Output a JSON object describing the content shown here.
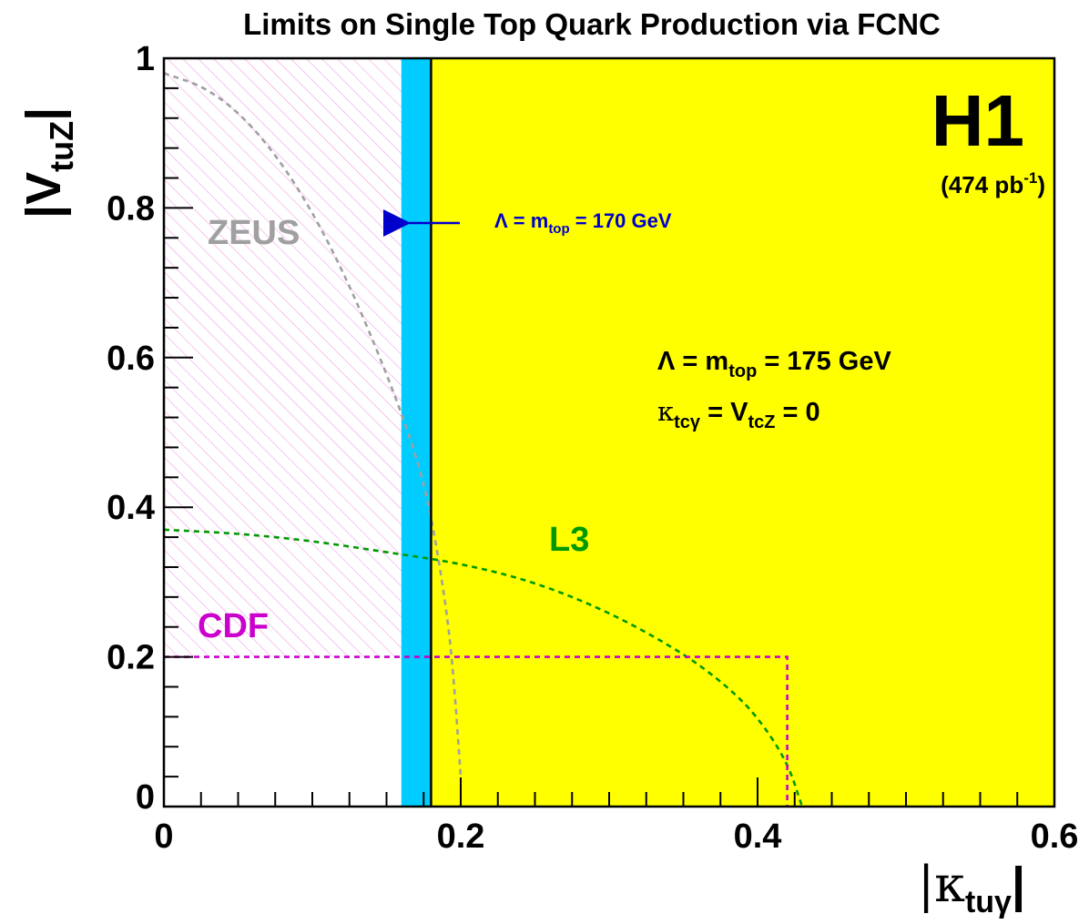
{
  "chart_data": {
    "type": "line",
    "title": "Limits on Single Top Quark Production via FCNC",
    "xlabel": {
      "sym": "|κ",
      "sub": "tuγ",
      "end": "|"
    },
    "ylabel": {
      "sym": "|V",
      "sub": "tuZ",
      "end": "|"
    },
    "xlim": [
      0,
      0.6
    ],
    "ylim": [
      0,
      1
    ],
    "xticks": [
      0,
      0.2,
      0.4,
      0.6
    ],
    "xtick_labels": [
      "0",
      "0.2",
      "0.4",
      "0.6"
    ],
    "yticks": [
      0,
      0.2,
      0.4,
      0.6,
      0.8,
      1
    ],
    "ytick_labels": [
      "0",
      "0.2",
      "0.4",
      "0.6",
      "0.8",
      "1"
    ],
    "experiment": "H1",
    "luminosity": {
      "main": "(474 pb",
      "sup": "-1",
      "end": ")"
    },
    "regions": [
      {
        "name": "H1",
        "type": "excluded",
        "x_from": 0.18,
        "x_to": 0.6,
        "color": "#ffff00"
      },
      {
        "name": "H1 Λ = 170 GeV band",
        "type": "band",
        "x_from": 0.16,
        "x_to": 0.18,
        "color": "#00ccff"
      },
      {
        "name": "ZEUS",
        "type": "hatched",
        "x_from": 0,
        "x_to": 0.16,
        "color": "#f0a0e8"
      }
    ],
    "series": [
      {
        "name": "ZEUS",
        "style": "dashed",
        "color": "#a0a0a0",
        "x": [
          0.0,
          0.03,
          0.06,
          0.09,
          0.12,
          0.15,
          0.17,
          0.18,
          0.19,
          0.195,
          0.2
        ],
        "y": [
          0.98,
          0.96,
          0.91,
          0.83,
          0.72,
          0.58,
          0.47,
          0.39,
          0.27,
          0.18,
          0.04
        ]
      },
      {
        "name": "L3",
        "style": "dashed",
        "color": "#009900",
        "x": [
          0.0,
          0.05,
          0.1,
          0.15,
          0.2,
          0.25,
          0.3,
          0.35,
          0.38,
          0.4,
          0.42,
          0.43
        ],
        "y": [
          0.37,
          0.365,
          0.355,
          0.34,
          0.325,
          0.3,
          0.26,
          0.205,
          0.16,
          0.12,
          0.06,
          0.0
        ]
      },
      {
        "name": "CDF",
        "style": "dashed",
        "color": "#cc00cc",
        "x": [
          0.0,
          0.42,
          0.42
        ],
        "y": [
          0.2,
          0.2,
          0.0
        ]
      }
    ],
    "limit_line": {
      "x": 0.18,
      "color": "#000000"
    },
    "annotations": {
      "zeus": "ZEUS",
      "l3": "L3",
      "cdf": "CDF",
      "arrow_label": {
        "pre": "Λ = m",
        "sub": "top",
        "post": " = 170 GeV",
        "color": "#0000cc"
      },
      "cond1": {
        "pre": "Λ = m",
        "sub": "top",
        "post": " = 175 GeV"
      },
      "cond2": {
        "pre": "κ",
        "sub": "tcγ",
        "mid": " = V",
        "sub2": "tcZ",
        "post": " = 0"
      }
    },
    "grid": false,
    "colors": {
      "h1": "#ffff00",
      "band": "#00ccff",
      "zeus": "#a0a0a0",
      "l3": "#009900",
      "cdf": "#cc00cc",
      "hatch": "#f0a0e8",
      "arrow": "#0000cc"
    }
  }
}
